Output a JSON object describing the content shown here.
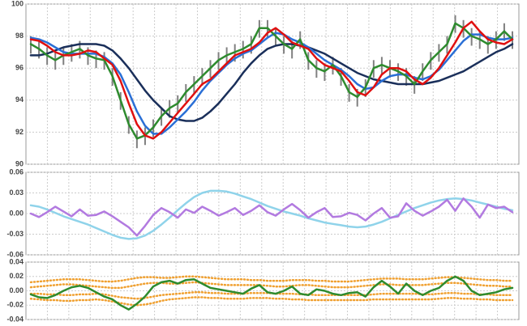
{
  "chart_data": [
    {
      "type": "ohlc",
      "ylim": [
        90,
        100
      ],
      "yticks": [
        90,
        92,
        94,
        96,
        98,
        100
      ],
      "grid": true,
      "bar_color": "#808080",
      "high": [
        98.0,
        97.7,
        97.3,
        97.0,
        97.3,
        97.5,
        97.7,
        97.3,
        97.1,
        97.0,
        96.0,
        94.5,
        93.0,
        92.1,
        92.3,
        92.8,
        93.5,
        94.0,
        94.3,
        95.0,
        95.5,
        96.0,
        96.5,
        97.0,
        97.3,
        97.5,
        97.7,
        98.0,
        99.0,
        99.0,
        98.5,
        98.0,
        97.7,
        98.3,
        97.0,
        96.5,
        96.3,
        96.7,
        96.0,
        95.0,
        94.7,
        95.3,
        96.5,
        96.7,
        96.5,
        96.3,
        96.0,
        95.5,
        96.3,
        97.0,
        97.5,
        98.0,
        99.3,
        99.0,
        98.5,
        98.3,
        98.0,
        98.3,
        98.8,
        98.3
      ],
      "low": [
        96.9,
        96.6,
        96.2,
        95.9,
        96.2,
        96.4,
        96.6,
        96.2,
        96.0,
        95.9,
        94.9,
        93.4,
        91.9,
        91.0,
        91.2,
        91.7,
        92.4,
        92.9,
        93.2,
        93.9,
        94.4,
        94.9,
        95.4,
        95.9,
        96.2,
        96.4,
        96.6,
        96.9,
        97.9,
        97.9,
        97.4,
        96.9,
        96.6,
        97.2,
        95.9,
        95.4,
        95.2,
        95.6,
        94.9,
        93.9,
        93.6,
        94.2,
        95.4,
        95.6,
        95.4,
        95.2,
        94.9,
        94.4,
        95.2,
        95.9,
        96.4,
        96.9,
        98.2,
        97.9,
        97.4,
        97.2,
        96.9,
        97.2,
        97.7,
        97.2
      ],
      "series": [
        {
          "color": "#1a2f5a",
          "values": [
            96.8,
            96.8,
            96.9,
            97.1,
            97.3,
            97.4,
            97.5,
            97.5,
            97.5,
            97.4,
            97.1,
            96.6,
            96.0,
            95.3,
            94.6,
            94.0,
            93.5,
            93.0,
            92.8,
            92.7,
            92.7,
            92.9,
            93.3,
            93.8,
            94.4,
            95.0,
            95.7,
            96.3,
            96.8,
            97.2,
            97.4,
            97.5,
            97.5,
            97.4,
            97.3,
            97.1,
            96.9,
            96.6,
            96.3,
            96.0,
            95.7,
            95.5,
            95.3,
            95.2,
            95.1,
            95.0,
            95.0,
            95.0,
            95.0,
            95.1,
            95.2,
            95.4,
            95.6,
            95.8,
            96.1,
            96.4,
            96.7,
            97.0,
            97.2,
            97.5
          ]
        },
        {
          "color": "#2a6fd6",
          "values": [
            97.9,
            97.8,
            97.6,
            97.3,
            97.0,
            96.9,
            96.9,
            96.9,
            96.9,
            96.7,
            96.3,
            95.6,
            94.5,
            93.3,
            92.4,
            91.9,
            91.9,
            92.3,
            92.8,
            93.3,
            93.9,
            94.6,
            95.2,
            95.7,
            96.2,
            96.6,
            96.9,
            97.1,
            97.5,
            97.9,
            98.2,
            98.1,
            97.8,
            97.6,
            97.3,
            96.9,
            96.5,
            96.2,
            95.9,
            95.5,
            95.0,
            94.7,
            94.8,
            95.2,
            95.5,
            95.6,
            95.6,
            95.4,
            95.3,
            95.5,
            95.9,
            96.5,
            97.1,
            97.7,
            98.1,
            98.1,
            97.9,
            97.8,
            97.8,
            97.9
          ]
        },
        {
          "color": "#2e8b2e",
          "values": [
            97.5,
            97.2,
            96.8,
            96.5,
            96.8,
            97.0,
            97.2,
            96.8,
            96.6,
            96.5,
            95.5,
            94.0,
            92.5,
            91.6,
            91.8,
            92.3,
            93.0,
            93.5,
            93.8,
            94.5,
            95.0,
            95.5,
            96.0,
            96.5,
            96.8,
            97.0,
            97.2,
            97.5,
            98.5,
            98.5,
            98.0,
            97.5,
            97.2,
            97.8,
            96.5,
            96.0,
            95.8,
            96.2,
            95.5,
            94.5,
            94.2,
            94.8,
            96.0,
            96.2,
            96.0,
            95.8,
            95.5,
            95.0,
            95.8,
            96.5,
            97.0,
            97.5,
            98.8,
            98.5,
            98.0,
            97.8,
            97.5,
            97.8,
            98.3,
            97.8
          ]
        },
        {
          "color": "#e01010",
          "values": [
            97.8,
            97.7,
            97.4,
            97.0,
            96.8,
            96.8,
            96.9,
            97.1,
            97.0,
            96.6,
            96.2,
            95.2,
            93.8,
            92.5,
            91.8,
            91.6,
            92.0,
            92.6,
            93.2,
            93.8,
            94.4,
            95.0,
            95.3,
            95.8,
            96.3,
            96.8,
            97.0,
            97.2,
            97.6,
            98.2,
            98.5,
            98.1,
            97.6,
            97.4,
            97.2,
            96.6,
            96.2,
            96.0,
            95.8,
            95.2,
            94.5,
            94.3,
            94.8,
            95.6,
            96.0,
            96.0,
            95.8,
            95.3,
            95.0,
            95.4,
            96.0,
            96.8,
            97.6,
            98.5,
            98.9,
            98.3,
            97.8,
            97.6,
            97.5,
            97.8
          ]
        }
      ]
    },
    {
      "type": "line",
      "ylim": [
        -0.06,
        0.06
      ],
      "yticks": [
        -0.06,
        -0.03,
        {
          "value": 0,
          "label": "0.00"
        },
        0.03,
        0.06
      ],
      "grid": true,
      "series": [
        {
          "color": "#8fd3ea",
          "values": [
            0.012,
            0.01,
            0.006,
            0.001,
            -0.004,
            -0.008,
            -0.012,
            -0.016,
            -0.021,
            -0.026,
            -0.031,
            -0.035,
            -0.037,
            -0.036,
            -0.032,
            -0.025,
            -0.016,
            -0.006,
            0.005,
            0.015,
            0.024,
            0.03,
            0.033,
            0.033,
            0.032,
            0.029,
            0.025,
            0.021,
            0.016,
            0.011,
            0.007,
            0.003,
            0.0,
            -0.003,
            -0.007,
            -0.01,
            -0.013,
            -0.015,
            -0.017,
            -0.019,
            -0.02,
            -0.019,
            -0.016,
            -0.012,
            -0.007,
            -0.002,
            0.003,
            0.008,
            0.012,
            0.016,
            0.019,
            0.021,
            0.022,
            0.021,
            0.019,
            0.016,
            0.013,
            0.01,
            0.007,
            0.005
          ]
        },
        {
          "color": "#b27ae0",
          "values": [
            0.0,
            -0.005,
            0.002,
            0.01,
            0.003,
            -0.004,
            0.006,
            -0.003,
            -0.002,
            0.003,
            -0.004,
            -0.012,
            -0.02,
            -0.032,
            -0.018,
            -0.002,
            0.008,
            0.002,
            -0.006,
            0.006,
            0.001,
            0.01,
            0.004,
            -0.003,
            0.002,
            0.008,
            -0.002,
            0.004,
            0.012,
            0.002,
            -0.003,
            0.006,
            0.014,
            0.005,
            -0.006,
            0.002,
            0.008,
            -0.005,
            -0.004,
            0.001,
            -0.002,
            -0.01,
            0.0,
            0.008,
            -0.006,
            -0.004,
            0.015,
            0.004,
            -0.003,
            0.003,
            0.01,
            0.02,
            0.004,
            0.022,
            0.01,
            -0.006,
            0.013,
            0.008,
            0.01,
            0.002
          ]
        }
      ]
    },
    {
      "type": "line",
      "ylim": [
        -0.04,
        0.04
      ],
      "yticks": [
        -0.04,
        -0.02,
        {
          "value": 0,
          "label": "0.00"
        },
        0.02,
        0.04
      ],
      "grid": true,
      "series": [
        {
          "color": "#f0a030",
          "dotted": true,
          "values": [
            0.012,
            0.013,
            0.014,
            0.015,
            0.016,
            0.016,
            0.016,
            0.015,
            0.014,
            0.013,
            0.013,
            0.014,
            0.016,
            0.018,
            0.019,
            0.019,
            0.018,
            0.018,
            0.019,
            0.02,
            0.02,
            0.019,
            0.018,
            0.017,
            0.016,
            0.016,
            0.016,
            0.015,
            0.015,
            0.014,
            0.014,
            0.014,
            0.015,
            0.015,
            0.015,
            0.014,
            0.014,
            0.013,
            0.013,
            0.013,
            0.014,
            0.015,
            0.016,
            0.017,
            0.017,
            0.017,
            0.016,
            0.016,
            0.016,
            0.017,
            0.018,
            0.019,
            0.019,
            0.018,
            0.017,
            0.016,
            0.015,
            0.015,
            0.014,
            0.014
          ]
        },
        {
          "color": "#f0a030",
          "dotted": true,
          "values": [
            0.005,
            0.006,
            0.007,
            0.008,
            0.009,
            0.009,
            0.008,
            0.007,
            0.006,
            0.005,
            0.004,
            0.004,
            0.006,
            0.008,
            0.01,
            0.011,
            0.011,
            0.01,
            0.01,
            0.011,
            0.012,
            0.011,
            0.01,
            0.009,
            0.008,
            0.008,
            0.008,
            0.008,
            0.008,
            0.007,
            0.006,
            0.006,
            0.007,
            0.008,
            0.008,
            0.007,
            0.006,
            0.005,
            0.005,
            0.005,
            0.006,
            0.007,
            0.008,
            0.009,
            0.009,
            0.008,
            0.008,
            0.008,
            0.008,
            0.009,
            0.01,
            0.011,
            0.011,
            0.01,
            0.009,
            0.008,
            0.007,
            0.007,
            0.006,
            0.006
          ]
        },
        {
          "color": "#f0a030",
          "dotted": true,
          "values": [
            -0.004,
            -0.004,
            -0.005,
            -0.005,
            -0.006,
            -0.006,
            -0.005,
            -0.005,
            -0.004,
            -0.005,
            -0.007,
            -0.009,
            -0.01,
            -0.011,
            -0.01,
            -0.008,
            -0.006,
            -0.005,
            -0.004,
            -0.003,
            -0.002,
            -0.002,
            -0.003,
            -0.003,
            -0.004,
            -0.004,
            -0.004,
            -0.003,
            -0.003,
            -0.003,
            -0.004,
            -0.004,
            -0.004,
            -0.005,
            -0.005,
            -0.006,
            -0.006,
            -0.006,
            -0.006,
            -0.006,
            -0.006,
            -0.006,
            -0.005,
            -0.004,
            -0.004,
            -0.004,
            -0.004,
            -0.004,
            -0.005,
            -0.005,
            -0.004,
            -0.003,
            -0.003,
            -0.004,
            -0.004,
            -0.005,
            -0.005,
            -0.006,
            -0.006,
            -0.006
          ]
        },
        {
          "color": "#f0a030",
          "dotted": true,
          "values": [
            -0.011,
            -0.012,
            -0.013,
            -0.013,
            -0.014,
            -0.014,
            -0.013,
            -0.013,
            -0.012,
            -0.013,
            -0.015,
            -0.017,
            -0.019,
            -0.02,
            -0.019,
            -0.017,
            -0.014,
            -0.012,
            -0.011,
            -0.01,
            -0.009,
            -0.009,
            -0.01,
            -0.01,
            -0.011,
            -0.011,
            -0.011,
            -0.01,
            -0.01,
            -0.01,
            -0.011,
            -0.011,
            -0.012,
            -0.012,
            -0.013,
            -0.013,
            -0.013,
            -0.013,
            -0.013,
            -0.013,
            -0.013,
            -0.013,
            -0.012,
            -0.012,
            -0.012,
            -0.012,
            -0.012,
            -0.012,
            -0.012,
            -0.012,
            -0.011,
            -0.01,
            -0.01,
            -0.011,
            -0.011,
            -0.012,
            -0.012,
            -0.013,
            -0.013,
            -0.013
          ]
        },
        {
          "color": "#2e8b2e",
          "values": [
            -0.005,
            -0.009,
            -0.01,
            -0.006,
            0.0,
            0.005,
            0.007,
            0.004,
            -0.002,
            -0.008,
            -0.012,
            -0.02,
            -0.026,
            -0.018,
            -0.008,
            0.006,
            0.012,
            0.014,
            0.01,
            0.015,
            0.016,
            0.01,
            0.004,
            0.002,
            0.0,
            -0.002,
            -0.004,
            0.003,
            0.008,
            -0.002,
            -0.004,
            0.0,
            0.006,
            -0.004,
            -0.006,
            0.002,
            0.0,
            -0.004,
            -0.006,
            -0.003,
            -0.002,
            -0.008,
            0.005,
            0.014,
            0.006,
            -0.004,
            0.01,
            0.0,
            -0.006,
            0.0,
            0.004,
            0.014,
            0.02,
            0.014,
            0.0,
            -0.006,
            -0.004,
            -0.002,
            0.002,
            0.004
          ]
        }
      ]
    }
  ]
}
